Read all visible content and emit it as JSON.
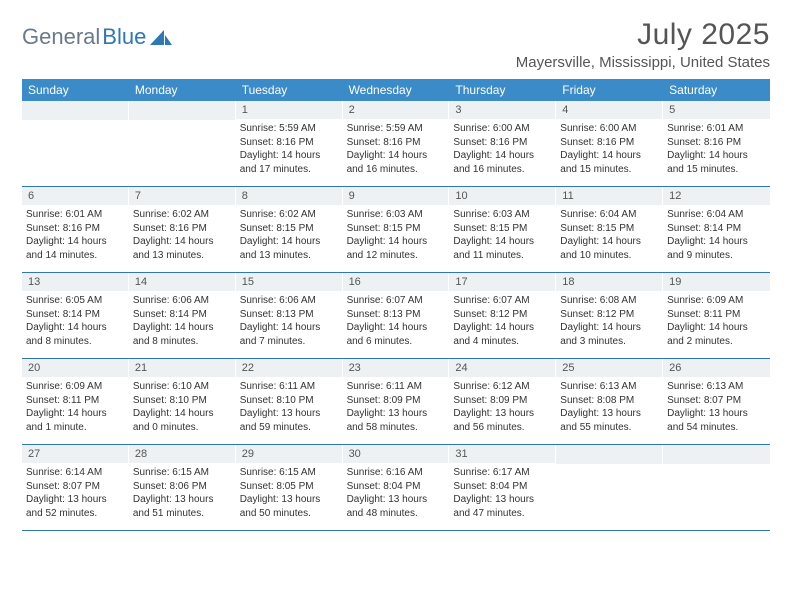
{
  "logo": {
    "word1": "General",
    "word2": "Blue"
  },
  "title": "July 2025",
  "location": "Mayersville, Mississippi, United States",
  "colors": {
    "header_bg": "#3b8bc9",
    "header_text": "#ffffff",
    "daynum_bg": "#eef1f3",
    "rule": "#2f77b5",
    "logo_gray": "#6b7a8a",
    "logo_blue": "#2f77b5",
    "text": "#333333",
    "title_text": "#555555"
  },
  "day_names": [
    "Sunday",
    "Monday",
    "Tuesday",
    "Wednesday",
    "Thursday",
    "Friday",
    "Saturday"
  ],
  "weeks": [
    [
      null,
      null,
      {
        "n": "1",
        "sr": "Sunrise: 5:59 AM",
        "ss": "Sunset: 8:16 PM",
        "dl1": "Daylight: 14 hours",
        "dl2": "and 17 minutes."
      },
      {
        "n": "2",
        "sr": "Sunrise: 5:59 AM",
        "ss": "Sunset: 8:16 PM",
        "dl1": "Daylight: 14 hours",
        "dl2": "and 16 minutes."
      },
      {
        "n": "3",
        "sr": "Sunrise: 6:00 AM",
        "ss": "Sunset: 8:16 PM",
        "dl1": "Daylight: 14 hours",
        "dl2": "and 16 minutes."
      },
      {
        "n": "4",
        "sr": "Sunrise: 6:00 AM",
        "ss": "Sunset: 8:16 PM",
        "dl1": "Daylight: 14 hours",
        "dl2": "and 15 minutes."
      },
      {
        "n": "5",
        "sr": "Sunrise: 6:01 AM",
        "ss": "Sunset: 8:16 PM",
        "dl1": "Daylight: 14 hours",
        "dl2": "and 15 minutes."
      }
    ],
    [
      {
        "n": "6",
        "sr": "Sunrise: 6:01 AM",
        "ss": "Sunset: 8:16 PM",
        "dl1": "Daylight: 14 hours",
        "dl2": "and 14 minutes."
      },
      {
        "n": "7",
        "sr": "Sunrise: 6:02 AM",
        "ss": "Sunset: 8:16 PM",
        "dl1": "Daylight: 14 hours",
        "dl2": "and 13 minutes."
      },
      {
        "n": "8",
        "sr": "Sunrise: 6:02 AM",
        "ss": "Sunset: 8:15 PM",
        "dl1": "Daylight: 14 hours",
        "dl2": "and 13 minutes."
      },
      {
        "n": "9",
        "sr": "Sunrise: 6:03 AM",
        "ss": "Sunset: 8:15 PM",
        "dl1": "Daylight: 14 hours",
        "dl2": "and 12 minutes."
      },
      {
        "n": "10",
        "sr": "Sunrise: 6:03 AM",
        "ss": "Sunset: 8:15 PM",
        "dl1": "Daylight: 14 hours",
        "dl2": "and 11 minutes."
      },
      {
        "n": "11",
        "sr": "Sunrise: 6:04 AM",
        "ss": "Sunset: 8:15 PM",
        "dl1": "Daylight: 14 hours",
        "dl2": "and 10 minutes."
      },
      {
        "n": "12",
        "sr": "Sunrise: 6:04 AM",
        "ss": "Sunset: 8:14 PM",
        "dl1": "Daylight: 14 hours",
        "dl2": "and 9 minutes."
      }
    ],
    [
      {
        "n": "13",
        "sr": "Sunrise: 6:05 AM",
        "ss": "Sunset: 8:14 PM",
        "dl1": "Daylight: 14 hours",
        "dl2": "and 8 minutes."
      },
      {
        "n": "14",
        "sr": "Sunrise: 6:06 AM",
        "ss": "Sunset: 8:14 PM",
        "dl1": "Daylight: 14 hours",
        "dl2": "and 8 minutes."
      },
      {
        "n": "15",
        "sr": "Sunrise: 6:06 AM",
        "ss": "Sunset: 8:13 PM",
        "dl1": "Daylight: 14 hours",
        "dl2": "and 7 minutes."
      },
      {
        "n": "16",
        "sr": "Sunrise: 6:07 AM",
        "ss": "Sunset: 8:13 PM",
        "dl1": "Daylight: 14 hours",
        "dl2": "and 6 minutes."
      },
      {
        "n": "17",
        "sr": "Sunrise: 6:07 AM",
        "ss": "Sunset: 8:12 PM",
        "dl1": "Daylight: 14 hours",
        "dl2": "and 4 minutes."
      },
      {
        "n": "18",
        "sr": "Sunrise: 6:08 AM",
        "ss": "Sunset: 8:12 PM",
        "dl1": "Daylight: 14 hours",
        "dl2": "and 3 minutes."
      },
      {
        "n": "19",
        "sr": "Sunrise: 6:09 AM",
        "ss": "Sunset: 8:11 PM",
        "dl1": "Daylight: 14 hours",
        "dl2": "and 2 minutes."
      }
    ],
    [
      {
        "n": "20",
        "sr": "Sunrise: 6:09 AM",
        "ss": "Sunset: 8:11 PM",
        "dl1": "Daylight: 14 hours",
        "dl2": "and 1 minute."
      },
      {
        "n": "21",
        "sr": "Sunrise: 6:10 AM",
        "ss": "Sunset: 8:10 PM",
        "dl1": "Daylight: 14 hours",
        "dl2": "and 0 minutes."
      },
      {
        "n": "22",
        "sr": "Sunrise: 6:11 AM",
        "ss": "Sunset: 8:10 PM",
        "dl1": "Daylight: 13 hours",
        "dl2": "and 59 minutes."
      },
      {
        "n": "23",
        "sr": "Sunrise: 6:11 AM",
        "ss": "Sunset: 8:09 PM",
        "dl1": "Daylight: 13 hours",
        "dl2": "and 58 minutes."
      },
      {
        "n": "24",
        "sr": "Sunrise: 6:12 AM",
        "ss": "Sunset: 8:09 PM",
        "dl1": "Daylight: 13 hours",
        "dl2": "and 56 minutes."
      },
      {
        "n": "25",
        "sr": "Sunrise: 6:13 AM",
        "ss": "Sunset: 8:08 PM",
        "dl1": "Daylight: 13 hours",
        "dl2": "and 55 minutes."
      },
      {
        "n": "26",
        "sr": "Sunrise: 6:13 AM",
        "ss": "Sunset: 8:07 PM",
        "dl1": "Daylight: 13 hours",
        "dl2": "and 54 minutes."
      }
    ],
    [
      {
        "n": "27",
        "sr": "Sunrise: 6:14 AM",
        "ss": "Sunset: 8:07 PM",
        "dl1": "Daylight: 13 hours",
        "dl2": "and 52 minutes."
      },
      {
        "n": "28",
        "sr": "Sunrise: 6:15 AM",
        "ss": "Sunset: 8:06 PM",
        "dl1": "Daylight: 13 hours",
        "dl2": "and 51 minutes."
      },
      {
        "n": "29",
        "sr": "Sunrise: 6:15 AM",
        "ss": "Sunset: 8:05 PM",
        "dl1": "Daylight: 13 hours",
        "dl2": "and 50 minutes."
      },
      {
        "n": "30",
        "sr": "Sunrise: 6:16 AM",
        "ss": "Sunset: 8:04 PM",
        "dl1": "Daylight: 13 hours",
        "dl2": "and 48 minutes."
      },
      {
        "n": "31",
        "sr": "Sunrise: 6:17 AM",
        "ss": "Sunset: 8:04 PM",
        "dl1": "Daylight: 13 hours",
        "dl2": "and 47 minutes."
      },
      null,
      null
    ]
  ]
}
